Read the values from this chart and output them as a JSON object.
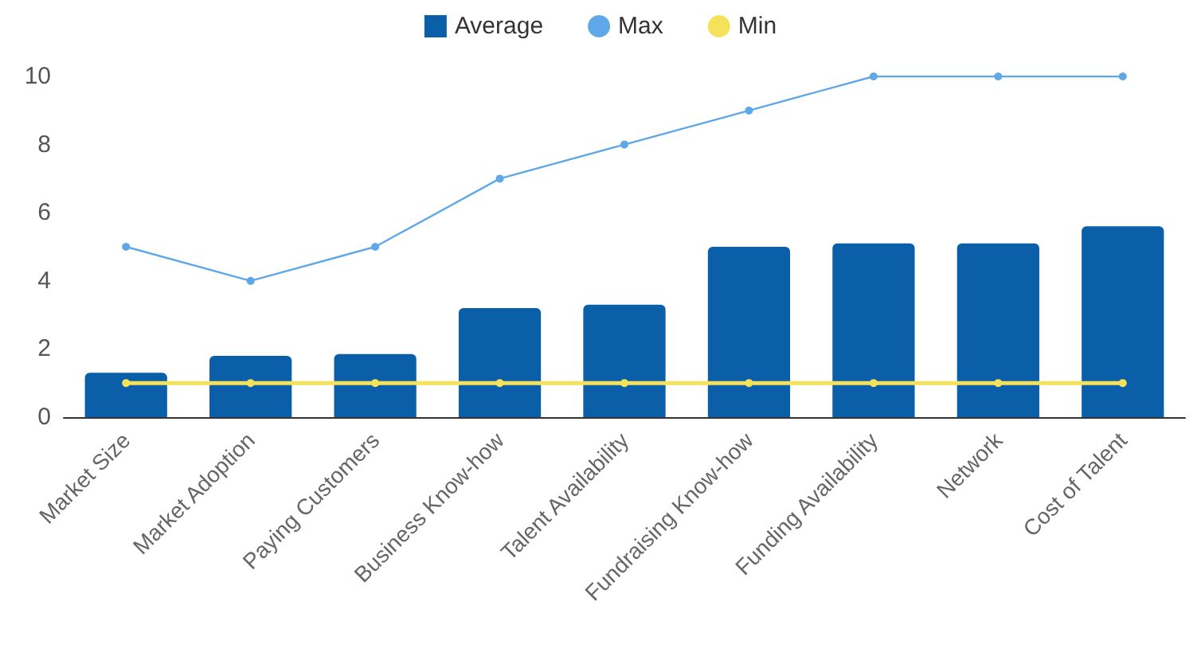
{
  "chart_data": {
    "type": "bar",
    "categories": [
      "Market Size",
      "Market Adoption",
      "Paying Customers",
      "Business Know-how",
      "Talent Availability",
      "Fundraising Know-how",
      "Funding Availability",
      "Network",
      "Cost of Talent"
    ],
    "series": [
      {
        "name": "Average",
        "color": "#0b5fa8",
        "values": [
          1.3,
          1.8,
          1.85,
          3.2,
          3.3,
          5.0,
          5.1,
          5.1,
          5.6
        ]
      },
      {
        "name": "Max",
        "type": "line",
        "color": "#5fa8e8",
        "values": [
          5,
          4,
          5,
          7,
          8,
          9,
          10,
          10,
          10
        ]
      },
      {
        "name": "Min",
        "type": "line",
        "color": "#f6e15a",
        "values": [
          1,
          1,
          1,
          1,
          1,
          1,
          1,
          1,
          1
        ]
      }
    ],
    "ylim": [
      0,
      10
    ],
    "yticks": [
      0,
      2,
      4,
      6,
      8,
      10
    ],
    "grid": false,
    "legend": "top",
    "marker": "circle"
  }
}
